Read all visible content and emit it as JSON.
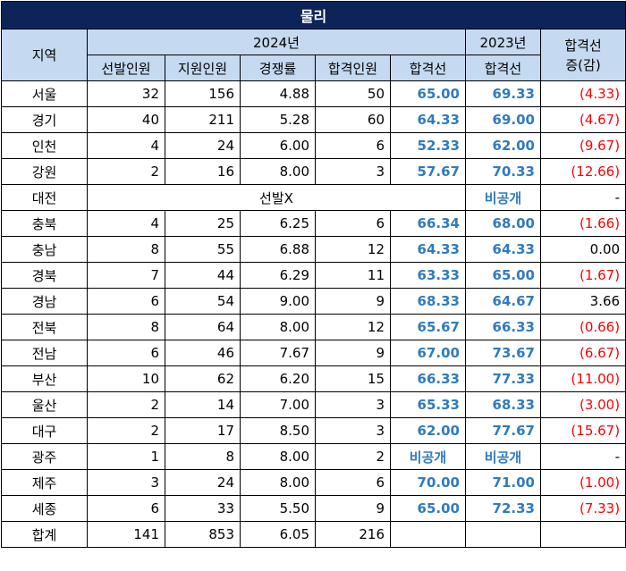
{
  "title": "물리",
  "headers": {
    "region": "지역",
    "year2024": "2024년",
    "year2023": "2023년",
    "change_line1": "합격선",
    "change_line2": "증(감)",
    "selected": "선발인원",
    "applicants": "지원인원",
    "ratio": "경쟁률",
    "passed": "합격인원",
    "cutoff2024": "합격선",
    "cutoff2023": "합격선"
  },
  "rows": [
    {
      "region": "서울",
      "selected": "32",
      "applicants": "156",
      "ratio": "4.88",
      "passed": "50",
      "cutoff2024": "65.00",
      "cutoff2023": "69.33",
      "change": "(4.33)"
    },
    {
      "region": "경기",
      "selected": "40",
      "applicants": "211",
      "ratio": "5.28",
      "passed": "60",
      "cutoff2024": "64.33",
      "cutoff2023": "69.00",
      "change": "(4.67)"
    },
    {
      "region": "인천",
      "selected": "4",
      "applicants": "24",
      "ratio": "6.00",
      "passed": "6",
      "cutoff2024": "52.33",
      "cutoff2023": "62.00",
      "change": "(9.67)"
    },
    {
      "region": "강원",
      "selected": "2",
      "applicants": "16",
      "ratio": "8.00",
      "passed": "3",
      "cutoff2024": "57.67",
      "cutoff2023": "70.33",
      "change": "(12.66)"
    },
    {
      "region": "대전",
      "merged": "선발X",
      "cutoff2023": "비공개",
      "change": "-"
    },
    {
      "region": "충북",
      "selected": "4",
      "applicants": "25",
      "ratio": "6.25",
      "passed": "6",
      "cutoff2024": "66.34",
      "cutoff2023": "68.00",
      "change": "(1.66)"
    },
    {
      "region": "충남",
      "selected": "8",
      "applicants": "55",
      "ratio": "6.88",
      "passed": "12",
      "cutoff2024": "64.33",
      "cutoff2023": "64.33",
      "change": "0.00"
    },
    {
      "region": "경북",
      "selected": "7",
      "applicants": "44",
      "ratio": "6.29",
      "passed": "11",
      "cutoff2024": "63.33",
      "cutoff2023": "65.00",
      "change": "(1.67)"
    },
    {
      "region": "경남",
      "selected": "6",
      "applicants": "54",
      "ratio": "9.00",
      "passed": "9",
      "cutoff2024": "68.33",
      "cutoff2023": "64.67",
      "change": "3.66"
    },
    {
      "region": "전북",
      "selected": "8",
      "applicants": "64",
      "ratio": "8.00",
      "passed": "12",
      "cutoff2024": "65.67",
      "cutoff2023": "66.33",
      "change": "(0.66)"
    },
    {
      "region": "전남",
      "selected": "6",
      "applicants": "46",
      "ratio": "7.67",
      "passed": "9",
      "cutoff2024": "67.00",
      "cutoff2023": "73.67",
      "change": "(6.67)"
    },
    {
      "region": "부산",
      "selected": "10",
      "applicants": "62",
      "ratio": "6.20",
      "passed": "15",
      "cutoff2024": "66.33",
      "cutoff2023": "77.33",
      "change": "(11.00)"
    },
    {
      "region": "울산",
      "selected": "2",
      "applicants": "14",
      "ratio": "7.00",
      "passed": "3",
      "cutoff2024": "65.33",
      "cutoff2023": "68.33",
      "change": "(3.00)"
    },
    {
      "region": "대구",
      "selected": "2",
      "applicants": "17",
      "ratio": "8.50",
      "passed": "3",
      "cutoff2024": "62.00",
      "cutoff2023": "77.67",
      "change": "(15.67)"
    },
    {
      "region": "광주",
      "selected": "1",
      "applicants": "8",
      "ratio": "8.00",
      "passed": "2",
      "cutoff2024": "비공개",
      "cutoff2023": "비공개",
      "change": "-"
    },
    {
      "region": "제주",
      "selected": "3",
      "applicants": "24",
      "ratio": "8.00",
      "passed": "6",
      "cutoff2024": "70.00",
      "cutoff2023": "71.00",
      "change": "(1.00)"
    },
    {
      "region": "세종",
      "selected": "6",
      "applicants": "33",
      "ratio": "5.50",
      "passed": "9",
      "cutoff2024": "65.00",
      "cutoff2023": "72.33",
      "change": "(7.33)"
    }
  ],
  "total": {
    "region": "합계",
    "selected": "141",
    "applicants": "853",
    "ratio": "6.05",
    "passed": "216",
    "cutoff2024": "",
    "cutoff2023": "",
    "change": ""
  }
}
